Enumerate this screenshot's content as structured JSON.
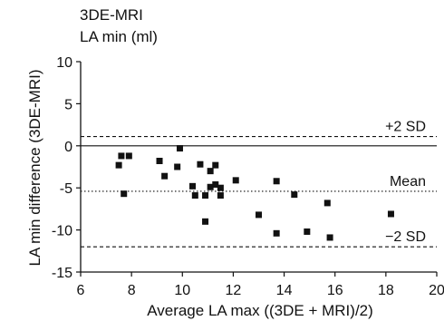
{
  "chart_data": {
    "type": "scatter",
    "title_lines": [
      "3DE-MRI",
      "LA min (ml)"
    ],
    "xlabel": "Average LA max ((3DE + MRI)/2)",
    "ylabel": "LA min difference (3DE-MRI)",
    "xlim": [
      6,
      20
    ],
    "ylim": [
      -15,
      10
    ],
    "x_ticks": [
      6,
      8,
      10,
      12,
      14,
      16,
      18,
      20
    ],
    "y_ticks": [
      10,
      5,
      0,
      -5,
      -10,
      -15
    ],
    "zero_line": 0,
    "reference_lines": [
      {
        "label": "+2 SD",
        "y": 1.1,
        "style": "dashed"
      },
      {
        "label": "Mean",
        "y": -5.4,
        "style": "dotted"
      },
      {
        "label": "−2 SD",
        "y": -12.0,
        "style": "dashed"
      }
    ],
    "points": [
      {
        "x": 7.5,
        "y": -2.3
      },
      {
        "x": 7.6,
        "y": -1.2
      },
      {
        "x": 7.9,
        "y": -1.2
      },
      {
        "x": 7.7,
        "y": -5.7
      },
      {
        "x": 9.1,
        "y": -1.8
      },
      {
        "x": 9.3,
        "y": -3.6
      },
      {
        "x": 9.9,
        "y": -0.3
      },
      {
        "x": 9.8,
        "y": -2.5
      },
      {
        "x": 10.4,
        "y": -4.8
      },
      {
        "x": 10.5,
        "y": -5.9
      },
      {
        "x": 10.7,
        "y": -2.2
      },
      {
        "x": 10.9,
        "y": -5.9
      },
      {
        "x": 10.9,
        "y": -9.0
      },
      {
        "x": 11.1,
        "y": -3.0
      },
      {
        "x": 11.1,
        "y": -4.9
      },
      {
        "x": 11.3,
        "y": -2.3
      },
      {
        "x": 11.3,
        "y": -4.6
      },
      {
        "x": 11.5,
        "y": -5.0
      },
      {
        "x": 11.5,
        "y": -5.9
      },
      {
        "x": 12.1,
        "y": -4.1
      },
      {
        "x": 13.0,
        "y": -8.2
      },
      {
        "x": 13.7,
        "y": -4.2
      },
      {
        "x": 13.7,
        "y": -10.4
      },
      {
        "x": 14.4,
        "y": -5.8
      },
      {
        "x": 14.9,
        "y": -10.2
      },
      {
        "x": 15.7,
        "y": -6.8
      },
      {
        "x": 15.8,
        "y": -10.9
      },
      {
        "x": 18.2,
        "y": -8.1
      }
    ],
    "grid": false,
    "legend": "none"
  }
}
